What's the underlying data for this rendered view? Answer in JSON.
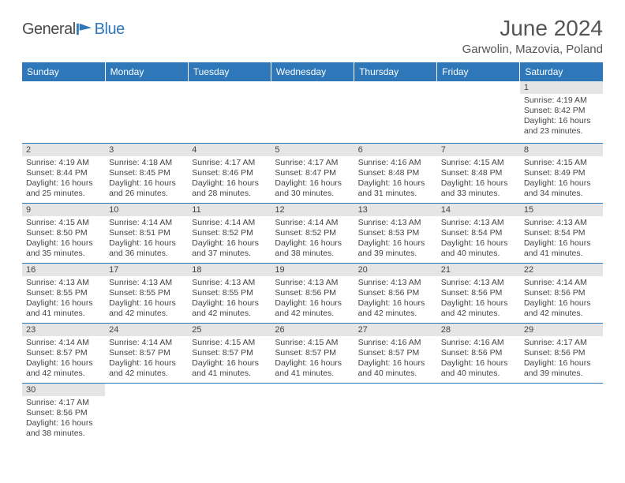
{
  "logo": {
    "part1": "General",
    "part2": "Blue"
  },
  "title": "June 2024",
  "location": "Garwolin, Mazovia, Poland",
  "colors": {
    "header_bg": "#2e77b8",
    "header_text": "#ffffff",
    "daynum_bg": "#e5e5e5",
    "border": "#2e77b8",
    "text": "#444444"
  },
  "weekdays": [
    "Sunday",
    "Monday",
    "Tuesday",
    "Wednesday",
    "Thursday",
    "Friday",
    "Saturday"
  ],
  "weeks": [
    [
      null,
      null,
      null,
      null,
      null,
      null,
      {
        "n": "1",
        "sr": "Sunrise: 4:19 AM",
        "ss": "Sunset: 8:42 PM",
        "dl": "Daylight: 16 hours and 23 minutes."
      }
    ],
    [
      {
        "n": "2",
        "sr": "Sunrise: 4:19 AM",
        "ss": "Sunset: 8:44 PM",
        "dl": "Daylight: 16 hours and 25 minutes."
      },
      {
        "n": "3",
        "sr": "Sunrise: 4:18 AM",
        "ss": "Sunset: 8:45 PM",
        "dl": "Daylight: 16 hours and 26 minutes."
      },
      {
        "n": "4",
        "sr": "Sunrise: 4:17 AM",
        "ss": "Sunset: 8:46 PM",
        "dl": "Daylight: 16 hours and 28 minutes."
      },
      {
        "n": "5",
        "sr": "Sunrise: 4:17 AM",
        "ss": "Sunset: 8:47 PM",
        "dl": "Daylight: 16 hours and 30 minutes."
      },
      {
        "n": "6",
        "sr": "Sunrise: 4:16 AM",
        "ss": "Sunset: 8:48 PM",
        "dl": "Daylight: 16 hours and 31 minutes."
      },
      {
        "n": "7",
        "sr": "Sunrise: 4:15 AM",
        "ss": "Sunset: 8:48 PM",
        "dl": "Daylight: 16 hours and 33 minutes."
      },
      {
        "n": "8",
        "sr": "Sunrise: 4:15 AM",
        "ss": "Sunset: 8:49 PM",
        "dl": "Daylight: 16 hours and 34 minutes."
      }
    ],
    [
      {
        "n": "9",
        "sr": "Sunrise: 4:15 AM",
        "ss": "Sunset: 8:50 PM",
        "dl": "Daylight: 16 hours and 35 minutes."
      },
      {
        "n": "10",
        "sr": "Sunrise: 4:14 AM",
        "ss": "Sunset: 8:51 PM",
        "dl": "Daylight: 16 hours and 36 minutes."
      },
      {
        "n": "11",
        "sr": "Sunrise: 4:14 AM",
        "ss": "Sunset: 8:52 PM",
        "dl": "Daylight: 16 hours and 37 minutes."
      },
      {
        "n": "12",
        "sr": "Sunrise: 4:14 AM",
        "ss": "Sunset: 8:52 PM",
        "dl": "Daylight: 16 hours and 38 minutes."
      },
      {
        "n": "13",
        "sr": "Sunrise: 4:13 AM",
        "ss": "Sunset: 8:53 PM",
        "dl": "Daylight: 16 hours and 39 minutes."
      },
      {
        "n": "14",
        "sr": "Sunrise: 4:13 AM",
        "ss": "Sunset: 8:54 PM",
        "dl": "Daylight: 16 hours and 40 minutes."
      },
      {
        "n": "15",
        "sr": "Sunrise: 4:13 AM",
        "ss": "Sunset: 8:54 PM",
        "dl": "Daylight: 16 hours and 41 minutes."
      }
    ],
    [
      {
        "n": "16",
        "sr": "Sunrise: 4:13 AM",
        "ss": "Sunset: 8:55 PM",
        "dl": "Daylight: 16 hours and 41 minutes."
      },
      {
        "n": "17",
        "sr": "Sunrise: 4:13 AM",
        "ss": "Sunset: 8:55 PM",
        "dl": "Daylight: 16 hours and 42 minutes."
      },
      {
        "n": "18",
        "sr": "Sunrise: 4:13 AM",
        "ss": "Sunset: 8:55 PM",
        "dl": "Daylight: 16 hours and 42 minutes."
      },
      {
        "n": "19",
        "sr": "Sunrise: 4:13 AM",
        "ss": "Sunset: 8:56 PM",
        "dl": "Daylight: 16 hours and 42 minutes."
      },
      {
        "n": "20",
        "sr": "Sunrise: 4:13 AM",
        "ss": "Sunset: 8:56 PM",
        "dl": "Daylight: 16 hours and 42 minutes."
      },
      {
        "n": "21",
        "sr": "Sunrise: 4:13 AM",
        "ss": "Sunset: 8:56 PM",
        "dl": "Daylight: 16 hours and 42 minutes."
      },
      {
        "n": "22",
        "sr": "Sunrise: 4:14 AM",
        "ss": "Sunset: 8:56 PM",
        "dl": "Daylight: 16 hours and 42 minutes."
      }
    ],
    [
      {
        "n": "23",
        "sr": "Sunrise: 4:14 AM",
        "ss": "Sunset: 8:57 PM",
        "dl": "Daylight: 16 hours and 42 minutes."
      },
      {
        "n": "24",
        "sr": "Sunrise: 4:14 AM",
        "ss": "Sunset: 8:57 PM",
        "dl": "Daylight: 16 hours and 42 minutes."
      },
      {
        "n": "25",
        "sr": "Sunrise: 4:15 AM",
        "ss": "Sunset: 8:57 PM",
        "dl": "Daylight: 16 hours and 41 minutes."
      },
      {
        "n": "26",
        "sr": "Sunrise: 4:15 AM",
        "ss": "Sunset: 8:57 PM",
        "dl": "Daylight: 16 hours and 41 minutes."
      },
      {
        "n": "27",
        "sr": "Sunrise: 4:16 AM",
        "ss": "Sunset: 8:57 PM",
        "dl": "Daylight: 16 hours and 40 minutes."
      },
      {
        "n": "28",
        "sr": "Sunrise: 4:16 AM",
        "ss": "Sunset: 8:56 PM",
        "dl": "Daylight: 16 hours and 40 minutes."
      },
      {
        "n": "29",
        "sr": "Sunrise: 4:17 AM",
        "ss": "Sunset: 8:56 PM",
        "dl": "Daylight: 16 hours and 39 minutes."
      }
    ],
    [
      {
        "n": "30",
        "sr": "Sunrise: 4:17 AM",
        "ss": "Sunset: 8:56 PM",
        "dl": "Daylight: 16 hours and 38 minutes."
      },
      null,
      null,
      null,
      null,
      null,
      null
    ]
  ]
}
